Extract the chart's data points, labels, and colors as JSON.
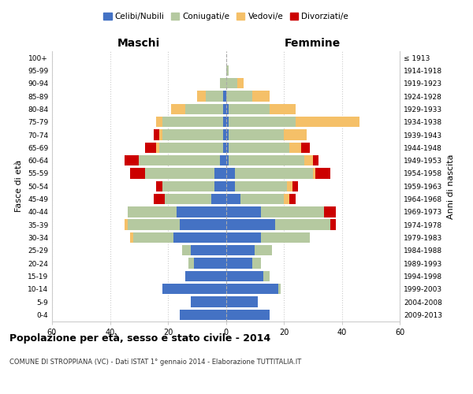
{
  "age_groups": [
    "0-4",
    "5-9",
    "10-14",
    "15-19",
    "20-24",
    "25-29",
    "30-34",
    "35-39",
    "40-44",
    "45-49",
    "50-54",
    "55-59",
    "60-64",
    "65-69",
    "70-74",
    "75-79",
    "80-84",
    "85-89",
    "90-94",
    "95-99",
    "100+"
  ],
  "birth_years": [
    "2009-2013",
    "2004-2008",
    "1999-2003",
    "1994-1998",
    "1989-1993",
    "1984-1988",
    "1979-1983",
    "1974-1978",
    "1969-1973",
    "1964-1968",
    "1959-1963",
    "1954-1958",
    "1949-1953",
    "1944-1948",
    "1939-1943",
    "1934-1938",
    "1929-1933",
    "1924-1928",
    "1919-1923",
    "1914-1918",
    "≤ 1913"
  ],
  "males": {
    "celibi": [
      16,
      12,
      22,
      14,
      11,
      12,
      18,
      16,
      17,
      5,
      4,
      4,
      2,
      1,
      1,
      1,
      1,
      1,
      0,
      0,
      0
    ],
    "coniugati": [
      0,
      0,
      0,
      0,
      2,
      3,
      14,
      18,
      17,
      16,
      18,
      24,
      28,
      22,
      21,
      21,
      13,
      6,
      2,
      0,
      0
    ],
    "vedovi": [
      0,
      0,
      0,
      0,
      0,
      0,
      1,
      1,
      0,
      0,
      0,
      0,
      0,
      1,
      1,
      2,
      5,
      3,
      0,
      0,
      0
    ],
    "divorziati": [
      0,
      0,
      0,
      0,
      0,
      0,
      0,
      0,
      0,
      4,
      2,
      5,
      5,
      4,
      2,
      0,
      0,
      0,
      0,
      0,
      0
    ]
  },
  "females": {
    "nubili": [
      15,
      11,
      18,
      13,
      9,
      10,
      12,
      17,
      12,
      5,
      3,
      3,
      1,
      1,
      1,
      1,
      1,
      0,
      0,
      0,
      0
    ],
    "coniugate": [
      0,
      0,
      1,
      2,
      3,
      6,
      17,
      19,
      22,
      15,
      18,
      27,
      26,
      21,
      19,
      23,
      14,
      9,
      4,
      1,
      0
    ],
    "vedove": [
      0,
      0,
      0,
      0,
      0,
      0,
      0,
      0,
      0,
      2,
      2,
      1,
      3,
      4,
      8,
      22,
      9,
      6,
      2,
      0,
      0
    ],
    "divorziate": [
      0,
      0,
      0,
      0,
      0,
      0,
      0,
      2,
      4,
      2,
      2,
      5,
      2,
      3,
      0,
      0,
      0,
      0,
      0,
      0,
      0
    ]
  },
  "colors": {
    "celibi": "#4472c4",
    "coniugati": "#b5c9a0",
    "vedovi": "#f5c068",
    "divorziati": "#cc0000"
  },
  "xlim": 60,
  "title": "Popolazione per età, sesso e stato civile - 2014",
  "subtitle": "COMUNE DI STROPPIANA (VC) - Dati ISTAT 1° gennaio 2014 - Elaborazione TUTTITALIA.IT",
  "label_maschi": "Maschi",
  "label_femmine": "Femmine",
  "ylabel_left": "Fasce di età",
  "ylabel_right": "Anni di nascita",
  "legend_labels": [
    "Celibi/Nubili",
    "Coniugati/e",
    "Vedovi/e",
    "Divorziati/e"
  ],
  "bg_color": "#ffffff",
  "grid_color": "#cccccc"
}
